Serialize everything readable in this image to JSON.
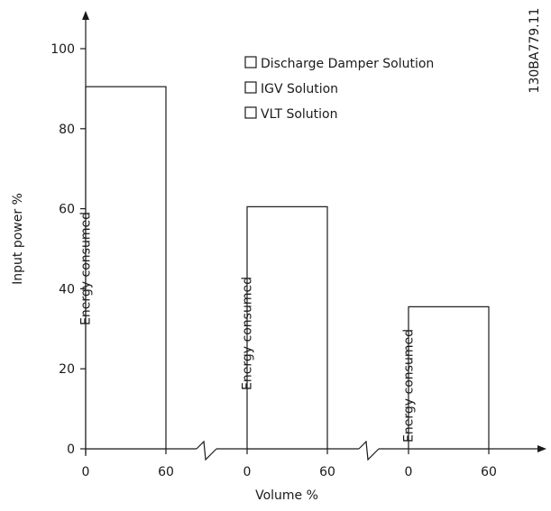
{
  "figure_id": "130BA779.11",
  "chart_data": {
    "type": "bar",
    "xlabel": "Volume %",
    "ylabel": "Input power %",
    "ylim": [
      0,
      110
    ],
    "y_ticks": [
      "0",
      "20",
      "40",
      "60",
      "80",
      "100"
    ],
    "x_tick_labels": [
      "0",
      "60",
      "0",
      "60",
      "0",
      "60"
    ],
    "bar_label": "Energy consumed",
    "legend_position": "top-right",
    "legend": [
      "Discharge Damper Solution",
      "IGV Solution",
      "VLT  Solution"
    ],
    "bars": [
      {
        "series": "Discharge Damper Solution",
        "value": 90.5,
        "x_start": 0,
        "x_end": 60
      },
      {
        "series": "IGV Solution",
        "value": 60.5,
        "x_start": 0,
        "x_end": 60
      },
      {
        "series": "VLT  Solution",
        "value": 35.5,
        "x_start": 0,
        "x_end": 60
      }
    ],
    "axis_breaks": 2,
    "grid": false,
    "colors": {
      "axis": "#1a1a1a",
      "bar_stroke": "#1a1a1a",
      "bar_fill": "#ffffff"
    }
  }
}
